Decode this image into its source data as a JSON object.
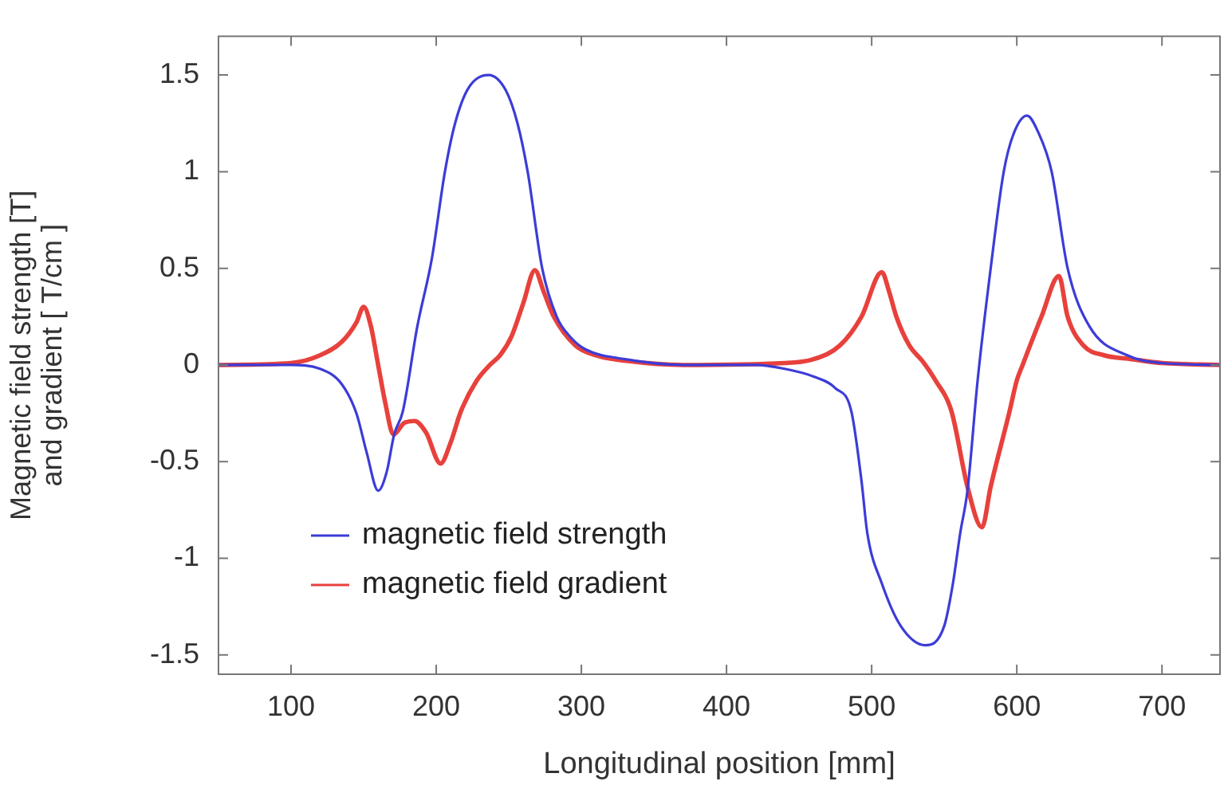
{
  "chart_data": {
    "type": "line",
    "xlabel": "Longitudinal position [mm]",
    "ylabel": "Magnetic field strength [T]\nand gradient [ T/cm ]",
    "xlim": [
      50,
      740
    ],
    "xticks": [
      100,
      200,
      300,
      400,
      500,
      600,
      700
    ],
    "ylim": [
      -1.6,
      1.7
    ],
    "yticks": [
      -1.5,
      -1,
      -0.5,
      0,
      0.5,
      1,
      1.5
    ],
    "grid": false,
    "legend": "bottom left",
    "marker": "none",
    "line_style": "solid",
    "series": [
      {
        "name": "magnetic field strength",
        "color": "#3c3cd8",
        "x": [
          50,
          100,
          120,
          135,
          145,
          152,
          160,
          166,
          171,
          177,
          187,
          197,
          206,
          213,
          222,
          236,
          248,
          256,
          263,
          273,
          283,
          293,
          303,
          330,
          370,
          420,
          440,
          460,
          475,
          486,
          493,
          497,
          507,
          520,
          537,
          550,
          556,
          561,
          566,
          573,
          582,
          591,
          598,
          607,
          615,
          624,
          635,
          650,
          676,
          700,
          740
        ],
        "values": [
          0,
          0,
          -0.02,
          -0.1,
          -0.25,
          -0.45,
          -0.65,
          -0.55,
          -0.36,
          -0.24,
          0.2,
          0.55,
          1.0,
          1.25,
          1.43,
          1.5,
          1.42,
          1.25,
          1.0,
          0.5,
          0.25,
          0.14,
          0.08,
          0.03,
          0,
          0,
          -0.02,
          -0.06,
          -0.12,
          -0.24,
          -0.6,
          -0.87,
          -1.13,
          -1.35,
          -1.45,
          -1.35,
          -1.13,
          -0.87,
          -0.65,
          -0.08,
          0.5,
          1.0,
          1.2,
          1.29,
          1.2,
          1.0,
          0.5,
          0.2,
          0.05,
          0.01,
          0
        ]
      },
      {
        "name": "magnetic field gradient",
        "color": "#e8413c",
        "x": [
          50,
          100,
          120,
          135,
          145,
          150,
          155,
          160,
          165,
          170.5,
          178,
          185,
          193,
          203,
          210,
          217,
          228,
          237,
          244,
          252,
          260,
          268,
          274,
          281,
          296,
          310,
          332,
          370,
          440,
          460,
          478,
          493,
          507,
          512,
          517,
          526,
          535,
          544,
          555,
          566,
          576,
          582,
          595,
          600,
          604,
          617,
          629,
          635,
          646,
          660,
          679,
          700,
          740
        ],
        "values": [
          0,
          0.01,
          0.05,
          0.12,
          0.22,
          0.3,
          0.2,
          0,
          -0.2,
          -0.36,
          -0.3,
          -0.29,
          -0.35,
          -0.51,
          -0.4,
          -0.24,
          -0.08,
          0,
          0.05,
          0.15,
          0.32,
          0.49,
          0.38,
          0.25,
          0.1,
          0.05,
          0.02,
          0,
          0.01,
          0.03,
          0.1,
          0.25,
          0.48,
          0.38,
          0.25,
          0.1,
          0.02,
          -0.08,
          -0.24,
          -0.63,
          -0.84,
          -0.63,
          -0.24,
          -0.08,
          0,
          0.25,
          0.46,
          0.25,
          0.1,
          0.05,
          0.03,
          0.01,
          0
        ]
      }
    ]
  }
}
